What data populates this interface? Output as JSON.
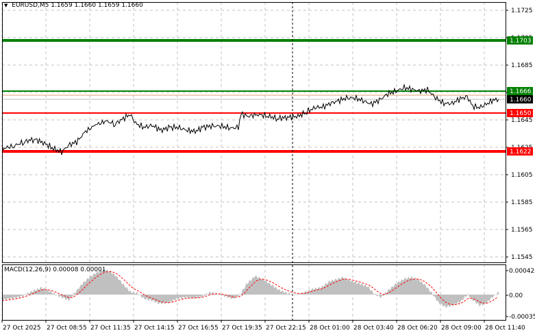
{
  "header": {
    "symbol": "EURUSD,M5",
    "ohlc": "1.1659 1.1660 1.1659 1.1660"
  },
  "macd": {
    "label": "MACD(12,26,9) 0.00008 0.00001",
    "scale_labels": [
      "0.00042",
      "0.00",
      "-0.00035"
    ]
  },
  "price_axis": {
    "ticks": [
      "1.1725",
      "1.1705",
      "1.1685",
      "1.1665",
      "1.1645",
      "1.1625",
      "1.1605",
      "1.1585",
      "1.1565",
      "1.1545"
    ]
  },
  "levels": [
    {
      "price": "1.1703",
      "color": "#008000",
      "label_bg": "#008000"
    },
    {
      "price": "1.1666",
      "color": "#008000",
      "label_bg": "#008000"
    },
    {
      "price": "1.1660",
      "color": "#000000",
      "label_bg": "#000000"
    },
    {
      "price": "1.1650",
      "color": "#ff0000",
      "label_bg": "#ff0000"
    },
    {
      "price": "1.1622",
      "color": "#ff0000",
      "label_bg": "#ff0000"
    }
  ],
  "time_axis": {
    "labels": [
      "27 Oct 2025",
      "27 Oct 08:55",
      "27 Oct 11:35",
      "27 Oct 14:15",
      "27 Oct 16:55",
      "27 Oct 19:35",
      "27 Oct 22:15",
      "28 Oct 01:00",
      "28 Oct 03:40",
      "28 Oct 06:20",
      "28 Oct 09:00",
      "28 Oct 11:40"
    ]
  },
  "colors": {
    "grid": "#c0c0c0",
    "price_line": "#000000",
    "macd_hist": "#c0c0c0",
    "macd_signal": "#ff0000",
    "support_resistance_green": "#008000",
    "support_resistance_red": "#ff0000"
  }
}
